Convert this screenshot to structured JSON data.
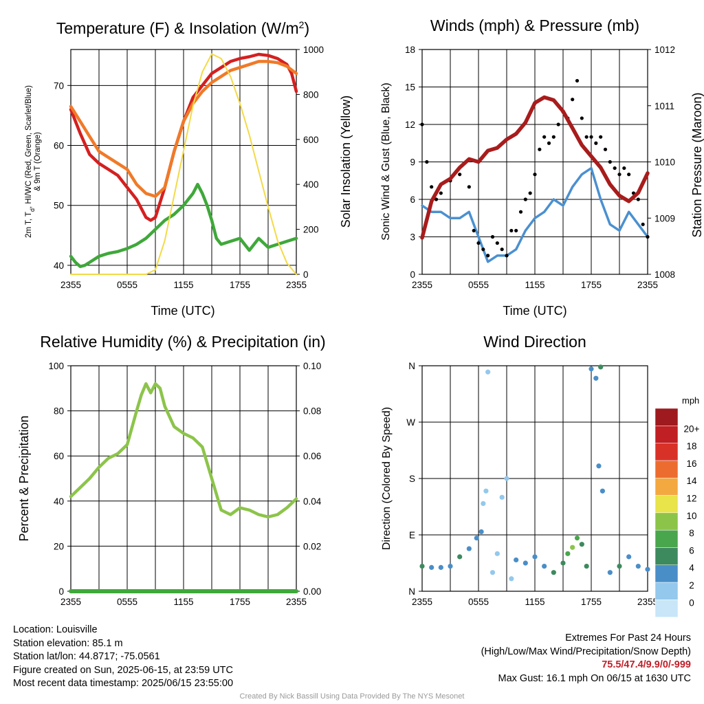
{
  "panels": {
    "temperature": {
      "title": "Temperature (F) & Insolation (W/m",
      "title_sup": "2",
      "title_end": ")",
      "ylabel_left_line1": "2m T, T",
      "ylabel_left_sub": "d",
      "ylabel_left_line1_end": ", HI/WC (Red, Green, Scarlet/Blue)",
      "ylabel_left_line2": "& 9m T (Orange)",
      "ylabel_right": "Solar Insolation (Yellow)",
      "xlabel": "Time (UTC)"
    },
    "winds": {
      "title": "Winds (mph) & Pressure (mb)",
      "ylabel_left": "Sonic Wind & Gust (Blue, Black)",
      "ylabel_right": "Station Pressure (Maroon)",
      "xlabel": "Time (UTC)"
    },
    "humidity": {
      "title": "Relative Humidity (%) & Precipitation (in)",
      "ylabel_left": "Percent & Precipitation"
    },
    "direction": {
      "title": "Wind Direction",
      "ylabel_left": "Direction (Colored By Speed)",
      "legend_title": "mph"
    }
  },
  "chart_data": [
    {
      "type": "line",
      "title": "Temperature (F) & Insolation (W/m2)",
      "xlabel": "Time (UTC)",
      "x_ticks": [
        "2355",
        "0555",
        "1155",
        "1755",
        "2355"
      ],
      "xlim_hours": [
        0,
        24
      ],
      "ylim_left": [
        38.5,
        76
      ],
      "y_ticks_left": [
        40,
        50,
        60,
        70
      ],
      "ylim_right": [
        0,
        1000
      ],
      "y_ticks_right": [
        0,
        200,
        400,
        600,
        800,
        1000
      ],
      "series": [
        {
          "name": "2m T",
          "color": "#d42020",
          "axis": "left",
          "x": [
            0,
            0.5,
            1,
            2,
            3,
            4,
            5,
            6,
            7,
            8,
            8.5,
            9,
            10,
            11,
            12,
            13,
            14,
            15,
            16,
            17,
            18,
            19,
            20,
            21,
            22,
            23,
            23.5,
            24
          ],
          "y": [
            66,
            64,
            62,
            58.5,
            57,
            56,
            55,
            53,
            51,
            48,
            47.5,
            48,
            53,
            59,
            64,
            68,
            70,
            72,
            73,
            74,
            74.5,
            74.8,
            75.2,
            75,
            74.5,
            73.5,
            72,
            69
          ]
        },
        {
          "name": "9m T",
          "color": "#f07a28",
          "axis": "left",
          "x": [
            0,
            1,
            2,
            3,
            4,
            5,
            6,
            7,
            8,
            9,
            10,
            11,
            12,
            13,
            14,
            15,
            16,
            17,
            18,
            19,
            20,
            21,
            22,
            23,
            24
          ],
          "y": [
            66.5,
            64,
            61.5,
            59,
            58,
            57,
            56,
            53.5,
            52,
            51.5,
            53,
            59,
            64,
            67,
            69,
            70.5,
            71.5,
            72.5,
            73,
            73.5,
            74,
            74,
            73.8,
            73.2,
            72
          ]
        },
        {
          "name": "Td",
          "color": "#3fa83a",
          "axis": "left",
          "x": [
            0,
            0.5,
            1,
            1.5,
            2,
            3,
            4,
            5,
            6,
            7,
            8,
            9,
            10,
            11,
            12,
            13,
            13.5,
            14,
            14.5,
            15,
            15.5,
            16,
            17,
            18,
            19,
            20,
            21,
            22,
            23,
            24
          ],
          "y": [
            41.5,
            40.5,
            39.8,
            40,
            40.5,
            41.5,
            42,
            42.3,
            42.8,
            43.5,
            44.5,
            46,
            47.5,
            48.5,
            50,
            52,
            53.5,
            52,
            50,
            47.5,
            44.5,
            43.5,
            44,
            44.5,
            42.5,
            44.5,
            43,
            43.5,
            44,
            44.5
          ]
        },
        {
          "name": "Solar Insolation",
          "color": "#f3da46",
          "axis": "right",
          "x": [
            0,
            1,
            2,
            3,
            4,
            5,
            6,
            7,
            8,
            9,
            10,
            11,
            12,
            13,
            14,
            15,
            16,
            17,
            18,
            19,
            20,
            21,
            22,
            23,
            24
          ],
          "y": [
            0,
            0,
            0,
            0,
            0,
            0,
            0,
            0,
            0,
            20,
            150,
            350,
            550,
            750,
            900,
            980,
            960,
            880,
            760,
            620,
            460,
            300,
            150,
            50,
            0
          ]
        }
      ]
    },
    {
      "type": "line",
      "title": "Winds (mph) & Pressure (mb)",
      "xlabel": "Time (UTC)",
      "x_ticks": [
        "2355",
        "0555",
        "1155",
        "1755",
        "2355"
      ],
      "xlim_hours": [
        0,
        24
      ],
      "ylim_left": [
        0,
        18
      ],
      "y_ticks_left": [
        0,
        3,
        6,
        9,
        12,
        15,
        18
      ],
      "ylim_right": [
        1008,
        1012
      ],
      "y_ticks_right": [
        1008,
        1009,
        1010,
        1011,
        1012
      ],
      "series": [
        {
          "name": "Sonic Wind",
          "color": "#4a90d0",
          "axis": "left",
          "x": [
            0,
            1,
            2,
            3,
            4,
            5,
            6,
            7,
            8,
            9,
            10,
            11,
            12,
            13,
            14,
            15,
            16,
            17,
            18,
            19,
            20,
            21,
            22,
            23,
            24
          ],
          "y": [
            5.5,
            5,
            5,
            4.5,
            4.5,
            5,
            3,
            1,
            1.5,
            1.5,
            2,
            3.5,
            4.5,
            5,
            6,
            5.5,
            7,
            8,
            8.5,
            6,
            4,
            3.5,
            5,
            4,
            3
          ]
        },
        {
          "name": "Gust",
          "color": "#000000",
          "axis": "left",
          "x": [
            0,
            0.5,
            1,
            1.5,
            2,
            3,
            4,
            5,
            5.5,
            6,
            6.5,
            7,
            7.5,
            8,
            8.5,
            9,
            9.5,
            10,
            10.5,
            11,
            11.5,
            12,
            12.5,
            13,
            13.5,
            14,
            14.5,
            15,
            15.5,
            16,
            16.5,
            17,
            17.5,
            18,
            18.5,
            19,
            19.5,
            20,
            20.5,
            21,
            21.5,
            22,
            22.5,
            23,
            23.5,
            24
          ],
          "y": [
            12,
            9,
            7,
            6,
            6.5,
            7.5,
            8,
            7,
            3.5,
            2.5,
            2,
            1.5,
            3,
            2.5,
            2,
            1.5,
            3.5,
            3.5,
            5,
            6,
            6.5,
            8,
            10,
            11,
            10.5,
            11,
            12,
            13,
            12.5,
            14,
            15.5,
            12.5,
            11,
            11,
            10.5,
            11,
            10,
            9,
            8.5,
            8,
            8.5,
            8,
            6.5,
            6,
            4,
            3
          ]
        },
        {
          "name": "Station Pressure",
          "color": "#a81c1c",
          "axis": "right",
          "x": [
            0,
            1,
            2,
            3,
            4,
            5,
            6,
            7,
            8,
            9,
            10,
            11,
            12,
            13,
            14,
            15,
            16,
            17,
            18,
            19,
            20,
            21,
            22,
            23,
            24
          ],
          "y": [
            1008.65,
            1009.3,
            1009.6,
            1009.7,
            1009.9,
            1010.05,
            1010.0,
            1010.2,
            1010.25,
            1010.4,
            1010.5,
            1010.7,
            1011.05,
            1011.15,
            1011.1,
            1010.9,
            1010.6,
            1010.3,
            1010.1,
            1009.9,
            1009.6,
            1009.4,
            1009.3,
            1009.45,
            1009.8
          ]
        }
      ]
    },
    {
      "type": "line",
      "title": "Relative Humidity (%) & Precipitation (in)",
      "x_ticks": [
        "2355",
        "0555",
        "1155",
        "1755",
        "2355"
      ],
      "xlim_hours": [
        0,
        24
      ],
      "ylim_left": [
        0,
        100
      ],
      "y_ticks_left": [
        0,
        20,
        40,
        60,
        80,
        100
      ],
      "ylim_right": [
        0,
        0.1
      ],
      "y_ticks_right": [
        "0.00",
        "0.02",
        "0.04",
        "0.06",
        "0.08",
        "0.10"
      ],
      "series": [
        {
          "name": "Relative Humidity",
          "color": "#8cc44a",
          "axis": "left",
          "x": [
            0,
            0.5,
            1,
            2,
            3,
            4,
            5,
            6,
            7,
            7.5,
            8,
            8.5,
            9,
            9.5,
            10,
            11,
            12,
            13,
            14,
            15,
            16,
            17,
            18,
            19,
            20,
            21,
            22,
            23,
            24
          ],
          "y": [
            42,
            44,
            46,
            50,
            55,
            59,
            61,
            65,
            80,
            87,
            92,
            88,
            92,
            90,
            82,
            73,
            70,
            68,
            64,
            50,
            36,
            34,
            37,
            36,
            34,
            33,
            34,
            37,
            41
          ]
        },
        {
          "name": "Precipitation",
          "color": "#3fa83a",
          "axis": "right",
          "x": [
            0,
            24
          ],
          "y": [
            0,
            0
          ]
        }
      ]
    },
    {
      "type": "scatter",
      "title": "Wind Direction",
      "x_ticks": [
        "2355",
        "0555",
        "1155",
        "1755",
        "2355"
      ],
      "xlim_hours": [
        0,
        24
      ],
      "y_ticks": [
        "N",
        "E",
        "S",
        "W",
        "N"
      ],
      "ylim_degrees": [
        0,
        360
      ],
      "colorbar": {
        "title": "mph",
        "labels": [
          "0",
          "2",
          "4",
          "6",
          "8",
          "10",
          "12",
          "14",
          "16",
          "18",
          "20+"
        ],
        "colors": [
          "#c8e6f8",
          "#94c8ec",
          "#4a8ec8",
          "#3d8a5e",
          "#4aa64c",
          "#8cc44a",
          "#e8e44a",
          "#f4a840",
          "#ec6c30",
          "#d83228",
          "#c01f23",
          "#9e1a1e"
        ]
      },
      "points": [
        {
          "x": 0,
          "y": 40,
          "s": 5
        },
        {
          "x": 1,
          "y": 38,
          "s": 4
        },
        {
          "x": 2,
          "y": 38,
          "s": 4
        },
        {
          "x": 3,
          "y": 40,
          "s": 4
        },
        {
          "x": 4,
          "y": 55,
          "s": 5
        },
        {
          "x": 5,
          "y": 68,
          "s": 4
        },
        {
          "x": 5.8,
          "y": 85,
          "s": 4
        },
        {
          "x": 6.3,
          "y": 95,
          "s": 3
        },
        {
          "x": 6.5,
          "y": 140,
          "s": 1
        },
        {
          "x": 6.8,
          "y": 160,
          "s": 1
        },
        {
          "x": 7,
          "y": 350,
          "s": 2
        },
        {
          "x": 7.5,
          "y": 30,
          "s": 1
        },
        {
          "x": 8,
          "y": 60,
          "s": 2
        },
        {
          "x": 8.5,
          "y": 150,
          "s": 2
        },
        {
          "x": 9,
          "y": 180,
          "s": 1
        },
        {
          "x": 9.5,
          "y": 20,
          "s": 1
        },
        {
          "x": 10,
          "y": 50,
          "s": 3
        },
        {
          "x": 11,
          "y": 45,
          "s": 3
        },
        {
          "x": 12,
          "y": 55,
          "s": 3
        },
        {
          "x": 13,
          "y": 40,
          "s": 4
        },
        {
          "x": 14,
          "y": 30,
          "s": 5
        },
        {
          "x": 15,
          "y": 45,
          "s": 6
        },
        {
          "x": 15.5,
          "y": 60,
          "s": 8
        },
        {
          "x": 16,
          "y": 70,
          "s": 9
        },
        {
          "x": 16.5,
          "y": 85,
          "s": 7
        },
        {
          "x": 17,
          "y": 75,
          "s": 6
        },
        {
          "x": 17.5,
          "y": 40,
          "s": 5
        },
        {
          "x": 18,
          "y": 355,
          "s": 4
        },
        {
          "x": 18.5,
          "y": 340,
          "s": 4
        },
        {
          "x": 19,
          "y": 358,
          "s": 6
        },
        {
          "x": 18.8,
          "y": 200,
          "s": 4
        },
        {
          "x": 19.2,
          "y": 160,
          "s": 4
        },
        {
          "x": 20,
          "y": 30,
          "s": 4
        },
        {
          "x": 21,
          "y": 40,
          "s": 5
        },
        {
          "x": 22,
          "y": 55,
          "s": 4
        },
        {
          "x": 23,
          "y": 40,
          "s": 4
        },
        {
          "x": 24,
          "y": 35,
          "s": 4
        }
      ]
    }
  ],
  "footer": {
    "location": "Location: Louisville",
    "elevation": "Station elevation: 85.1 m",
    "latlon": "Station lat/lon: 44.8717; -75.0561",
    "created": "Figure created on Sun, 2025-06-15, at 23:59 UTC",
    "recent": "Most recent data timestamp: 2025/06/15 23:55:00",
    "extremes_title": "Extremes For Past 24 Hours",
    "extremes_legend": "(High/Low/Max Wind/Precipitation/Snow Depth)",
    "extremes_values": "75.5/47.4/9.9/0/-999",
    "max_gust": "Max Gust: 16.1 mph On 06/15 at 1630 UTC",
    "credit": "Created By Nick Bassill Using Data Provided By The NYS Mesonet"
  }
}
